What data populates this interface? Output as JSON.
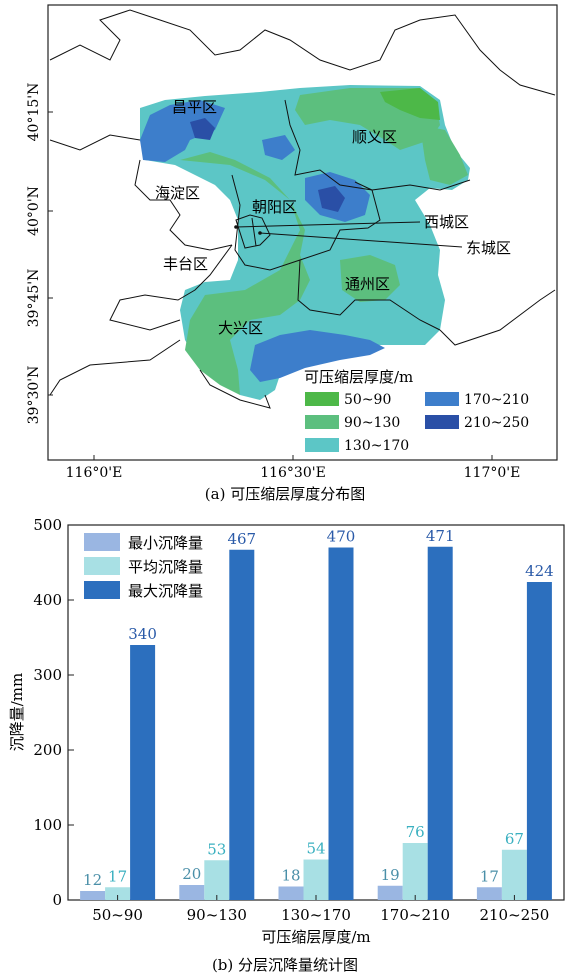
{
  "map_panel": {
    "caption": "(a) 可压缩层厚度分布图",
    "lon_ticks": [
      "116°0'E",
      "116°30'E",
      "117°0'E"
    ],
    "lat_ticks": [
      "40°15'N",
      "40°0'N",
      "39°45'N",
      "39°30'N"
    ],
    "districts": [
      "昌平区",
      "顺义区",
      "海淀区",
      "朝阳区",
      "西城区",
      "东城区",
      "丰台区",
      "通州区",
      "大兴区"
    ],
    "legend_title": "可压缩层厚度/m",
    "legend": [
      {
        "label": "50~90",
        "color": "#4db848"
      },
      {
        "label": "90~130",
        "color": "#5cbf7e"
      },
      {
        "label": "130~170",
        "color": "#5cc6c6"
      },
      {
        "label": "170~210",
        "color": "#3d7ecb"
      },
      {
        "label": "210~250",
        "color": "#2a4fa6"
      }
    ]
  },
  "chart_data": {
    "type": "bar",
    "caption": "(b) 分层沉降量统计图",
    "xlabel": "可压缩层厚度/m",
    "ylabel": "沉降量/mm",
    "ylim": [
      0,
      500
    ],
    "yticks": [
      "0",
      "100",
      "200",
      "300",
      "400",
      "500"
    ],
    "categories": [
      "50~90",
      "90~130",
      "130~170",
      "170~210",
      "210~250"
    ],
    "series": [
      {
        "name": "最小沉降量",
        "color": "#9ab6e2",
        "label_color": "#4a8fa8",
        "values": [
          12,
          20,
          18,
          19,
          17
        ]
      },
      {
        "name": "平均沉降量",
        "color": "#a8e0e4",
        "label_color": "#3ab0c0",
        "values": [
          17,
          53,
          54,
          76,
          67
        ]
      },
      {
        "name": "最大沉降量",
        "color": "#2c6fbe",
        "label_color": "#2a5aa8",
        "values": [
          340,
          467,
          470,
          471,
          424
        ]
      }
    ],
    "legend_position": "top-left"
  }
}
